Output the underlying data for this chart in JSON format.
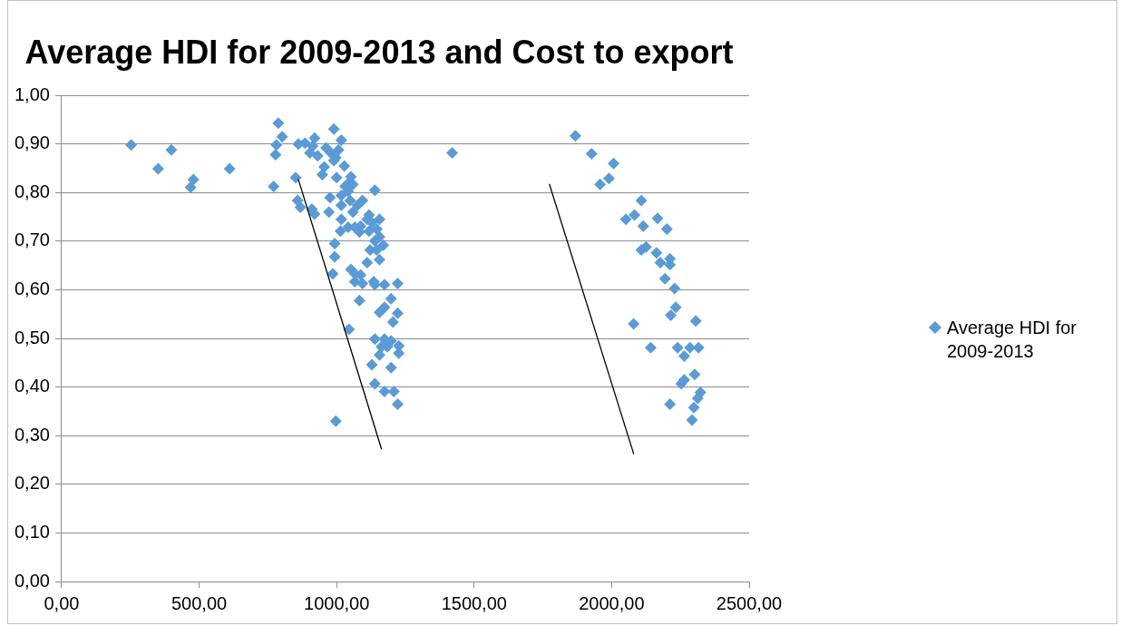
{
  "chart_data": {
    "type": "scatter",
    "title": "Average HDI for 2009-2013 and Cost to export",
    "xlim": [
      0,
      2500
    ],
    "xticks": [
      {
        "value": 0,
        "label": "0,00"
      },
      {
        "value": 500,
        "label": "500,00"
      },
      {
        "value": 1000,
        "label": "1000,00"
      },
      {
        "value": 1500,
        "label": "1500,00"
      },
      {
        "value": 2000,
        "label": "2000,00"
      },
      {
        "value": 2500,
        "label": "2500,00"
      }
    ],
    "ylim": [
      0,
      1
    ],
    "yticks": [
      {
        "value": 0,
        "label": "0,00"
      },
      {
        "value": 0.1,
        "label": "0,10"
      },
      {
        "value": 0.2,
        "label": "0,20"
      },
      {
        "value": 0.3,
        "label": "0,30"
      },
      {
        "value": 0.4,
        "label": "0,40"
      },
      {
        "value": 0.5,
        "label": "0,50"
      },
      {
        "value": 0.6,
        "label": "0,60"
      },
      {
        "value": 0.7,
        "label": "0,70"
      },
      {
        "value": 0.8,
        "label": "0,80"
      },
      {
        "value": 0.9,
        "label": "0,90"
      },
      {
        "value": 1,
        "label": "1,00"
      }
    ],
    "grid": "y",
    "legend": "right",
    "marker": "diamond",
    "series": [
      {
        "name": "Average HDI for 2009-2013",
        "color": "#5b9bd5",
        "x": [
          253,
          399,
          351,
          479,
          469,
          611,
          788,
          802,
          781,
          778,
          771,
          1420,
          1868,
          1927,
          2007,
          1990,
          1958,
          2108,
          2083,
          2052,
          2115,
          2167,
          2201,
          2125,
          2108,
          2163,
          2177,
          2212,
          2212,
          2194,
          2229,
          2233,
          2215,
          2306,
          2080,
          2142,
          2240,
          2285,
          2316,
          2264,
          2302,
          2264,
          2253,
          2323,
          2313,
          2212,
          2299,
          2292,
          851,
          858,
          868,
          910,
          920,
          861,
          885,
          920,
          903,
          931,
          913,
          990,
          1017,
          962,
          979,
          997,
          1007,
          990,
          955,
          1028,
          948,
          1000,
          1052,
          1042,
          1059,
          1031,
          1139,
          976,
          1017,
          1042,
          972,
          1017,
          1049,
          1094,
          1076,
          1059,
          1017,
          1118,
          1156,
          1128,
          1111,
          1087,
          1066,
          1042,
          1014,
          1083,
          1118,
          1146,
          1139,
          1156,
          1170,
          1146,
          1122,
          1156,
          1111,
          993,
          993,
          986,
          1052,
          1066,
          1087,
          1066,
          1094,
          1135,
          1139,
          1174,
          1222,
          1083,
          1198,
          1174,
          1156,
          1222,
          1205,
          1045,
          1139,
          1174,
          1198,
          1226,
          1163,
          1184,
          1226,
          1156,
          1128,
          1198,
          1139,
          1174,
          1208,
          1222,
          997
        ],
        "values": [
          0.898,
          0.888,
          0.849,
          0.827,
          0.811,
          0.849,
          0.943,
          0.915,
          0.898,
          0.878,
          0.813,
          0.882,
          0.917,
          0.88,
          0.86,
          0.829,
          0.817,
          0.784,
          0.754,
          0.745,
          0.731,
          0.747,
          0.725,
          0.688,
          0.682,
          0.676,
          0.656,
          0.664,
          0.652,
          0.623,
          0.603,
          0.564,
          0.548,
          0.536,
          0.53,
          0.481,
          0.481,
          0.481,
          0.481,
          0.464,
          0.426,
          0.415,
          0.407,
          0.389,
          0.377,
          0.365,
          0.358,
          0.332,
          0.831,
          0.784,
          0.77,
          0.766,
          0.756,
          0.9,
          0.902,
          0.912,
          0.882,
          0.876,
          0.896,
          0.931,
          0.908,
          0.892,
          0.882,
          0.872,
          0.888,
          0.866,
          0.853,
          0.855,
          0.837,
          0.831,
          0.833,
          0.819,
          0.817,
          0.813,
          0.805,
          0.79,
          0.794,
          0.803,
          0.76,
          0.774,
          0.784,
          0.784,
          0.774,
          0.76,
          0.745,
          0.754,
          0.745,
          0.739,
          0.745,
          0.731,
          0.729,
          0.729,
          0.721,
          0.719,
          0.721,
          0.725,
          0.701,
          0.709,
          0.692,
          0.682,
          0.682,
          0.662,
          0.656,
          0.695,
          0.668,
          0.633,
          0.642,
          0.633,
          0.631,
          0.617,
          0.613,
          0.617,
          0.611,
          0.611,
          0.613,
          0.578,
          0.582,
          0.564,
          0.554,
          0.552,
          0.534,
          0.519,
          0.499,
          0.499,
          0.495,
          0.485,
          0.483,
          0.483,
          0.47,
          0.466,
          0.446,
          0.44,
          0.407,
          0.391,
          0.391,
          0.365,
          0.33
        ]
      },
      {
        "type": "line",
        "color": "#000000",
        "marker": "none",
        "x": [
          861,
          1163
        ],
        "values": [
          0.827,
          0.273
        ]
      },
      {
        "type": "line",
        "color": "#000000",
        "marker": "none",
        "x": [
          1774,
          2080
        ],
        "values": [
          0.817,
          0.263
        ]
      }
    ]
  }
}
